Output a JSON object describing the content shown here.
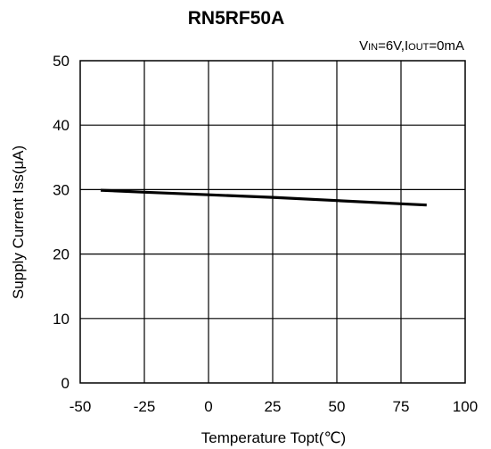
{
  "chart_data": {
    "type": "line",
    "title": "RN5RF50A",
    "conditions": {
      "vin_prefix": "V",
      "vin_sub": "IN",
      "vin_value": "=6V,",
      "iout_prefix": "I",
      "iout_sub": "OUT",
      "iout_value": "=0mA"
    },
    "xlabel": "Temperature Topt(℃)",
    "ylabel": "Supply Current Iss(μA)",
    "xlim": [
      -50,
      100
    ],
    "ylim": [
      0,
      50
    ],
    "x_ticks": [
      "-50",
      "-25",
      "0",
      "25",
      "50",
      "75",
      "100"
    ],
    "y_ticks": [
      "0",
      "10",
      "20",
      "30",
      "40",
      "50"
    ],
    "grid": true,
    "series": [
      {
        "x": [
          -42,
          -25,
          0,
          25,
          50,
          75,
          85
        ],
        "y": [
          29.9,
          29.6,
          29.2,
          28.8,
          28.3,
          27.8,
          27.6
        ],
        "color": "#000000"
      }
    ]
  }
}
